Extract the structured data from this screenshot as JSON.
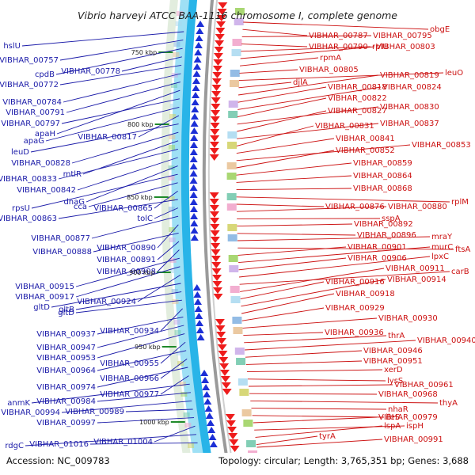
{
  "header": {
    "title": "Vibrio harveyi ATCC BAA-1116 chromosome I, complete genome"
  },
  "footer": {
    "accession": "Accession: NC_009783",
    "summary": "Topology: circular; Length: 3,765,351 bp; Genes: 3,688"
  },
  "colors": {
    "forward": "#1a1aa8",
    "reverse": "#cc1111",
    "backbone": "#999999",
    "gc_track": "#28b4e8",
    "tick": "#1f8a2a"
  },
  "ticks": [
    "750 kbp",
    "800 kbp",
    "850 kbp",
    "900 kbp",
    "950 kbp",
    "1000 kbp"
  ],
  "left_labels": [
    "hslU",
    "VIBHAR_00757",
    "cpdB",
    "VIBHAR_00778",
    "VIBHAR_00772",
    "VIBHAR_00784",
    "VIBHAR_00791",
    "apaH",
    "VIBHAR_00797",
    "apaG",
    "VIBHAR_00817",
    "leuD",
    "VIBHAR_00828",
    "mtlR",
    "VIBHAR_00833",
    "VIBHAR_00842",
    "dnaG",
    "rpsU",
    "cca",
    "VIBHAR_00865",
    "VIBHAR_00863",
    "tolC",
    "VIBHAR_00877",
    "VIBHAR_00890",
    "VIBHAR_00888",
    "VIBHAR_00891",
    "VIBHAR_00908",
    "VIBHAR_00915",
    "VIBHAR_00917",
    "VIBHAR_00924",
    "gltD",
    "gltB",
    "gltD",
    "VIBHAR_00934",
    "VIBHAR_00937",
    "VIBHAR_00947",
    "VIBHAR_00953",
    "VIBHAR_00955",
    "VIBHAR_00964",
    "VIBHAR_00966",
    "VIBHAR_00974",
    "VIBHAR_00977",
    "anmK",
    "VIBHAR_00984",
    "VIBHAR_00994",
    "VIBHAR_00989",
    "VIBHAR_00997",
    "VIBHAR_01004",
    "rdgC",
    "VIBHAR_01016"
  ],
  "right_labels": [
    "obgE",
    "VIBHAR_00787",
    "VIBHAR_00795",
    "VIBHAR_00790",
    "rplU",
    "VIBHAR_00803",
    "rpmA",
    "VIBHAR_00805",
    "leuO",
    "djlA",
    "VIBHAR_00819",
    "VIBHAR_00818",
    "VIBHAR_00824",
    "VIBHAR_00822",
    "VIBHAR_00830",
    "VIBHAR_00827",
    "VIBHAR_00837",
    "VIBHAR_00831",
    "VIBHAR_00841",
    "VIBHAR_00853",
    "VIBHAR_00852",
    "VIBHAR_00859",
    "VIBHAR_00864",
    "VIBHAR_00868",
    "rplM",
    "VIBHAR_00876",
    "VIBHAR_00880",
    "sspA",
    "VIBHAR_00892",
    "VIBHAR_00896",
    "mraY",
    "ftsA",
    "VIBHAR_00901",
    "murC",
    "VIBHAR_00906",
    "lpxC",
    "carB",
    "VIBHAR_00911",
    "VIBHAR_00916",
    "VIBHAR_00914",
    "VIBHAR_00918",
    "VIBHAR_00929",
    "VIBHAR_00930",
    "VIBHAR_00936",
    "thrA",
    "VIBHAR_00940",
    "VIBHAR_00946",
    "VIBHAR_00951",
    "xerD",
    "lysS",
    "VIBHAR_00961",
    "VIBHAR_00968",
    "thyA",
    "nhaR",
    "ileS",
    "VIBHAR_00979",
    "ispH",
    "lspA",
    "tyrA",
    "VIBHAR_00991"
  ]
}
